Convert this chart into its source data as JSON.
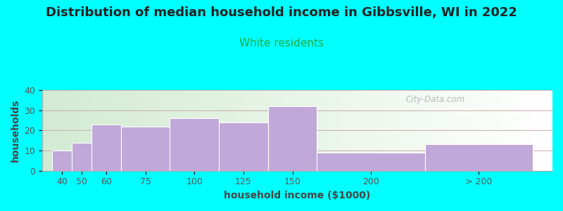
{
  "title": "Distribution of median household income in Gibbsville, WI in 2022",
  "subtitle": "White residents",
  "xlabel": "household income ($1000)",
  "ylabel": "households",
  "background_color": "#00FFFF",
  "bar_color": "#C0A8D8",
  "bar_edge_color": "#FFFFFF",
  "categories": [
    "40",
    "50",
    "60",
    "75",
    "100",
    "125",
    "150",
    "200",
    "> 200"
  ],
  "values": [
    10,
    14,
    23,
    22,
    26,
    24,
    32,
    9,
    13
  ],
  "ylim": [
    0,
    40
  ],
  "yticks": [
    0,
    10,
    20,
    30,
    40
  ],
  "title_fontsize": 13,
  "subtitle_fontsize": 11,
  "subtitle_color": "#22AA44",
  "axis_label_fontsize": 10,
  "tick_fontsize": 9,
  "watermark": "City-Data.com",
  "bar_lefts": [
    35,
    45,
    55,
    70,
    95,
    120,
    145,
    170,
    225
  ],
  "bar_widths": [
    10,
    10,
    15,
    25,
    25,
    25,
    25,
    55,
    55
  ],
  "xlim_left": 30,
  "xlim_right": 290
}
